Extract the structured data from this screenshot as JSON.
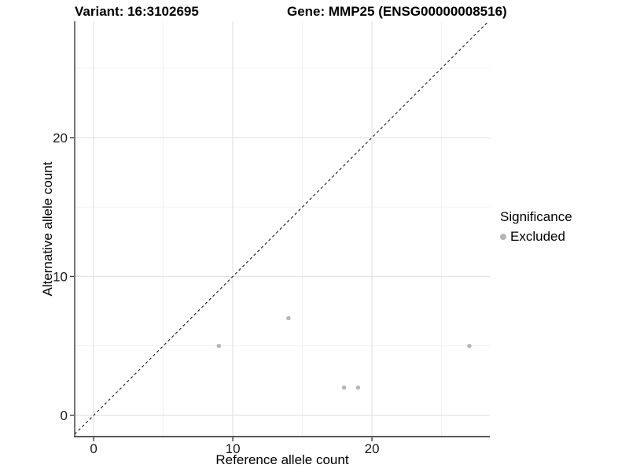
{
  "chart_data": {
    "type": "scatter",
    "titles": {
      "left": "Variant: 16:3102695",
      "right": "Gene: MMP25 (ENSG00000008516)"
    },
    "xlabel": "Reference allele count",
    "ylabel": "Alternative allele count",
    "xlim": [
      -1.36,
      28.47
    ],
    "ylim": [
      -1.53,
      28.38
    ],
    "x_major_ticks": [
      0,
      10,
      20
    ],
    "y_major_ticks": [
      0,
      10,
      20
    ],
    "x_minor_gridlines": [
      5,
      15,
      25
    ],
    "y_minor_gridlines": [
      5,
      15,
      25
    ],
    "grid": "major+minor, light gray on white panel",
    "identity_line": {
      "slope": 1,
      "intercept": 0,
      "style": "dashed",
      "color": "#1a1a1a"
    },
    "series": [
      {
        "name": "Excluded",
        "color": "#b5b5b5",
        "marker": "circle",
        "points": [
          {
            "x": 9,
            "y": 5
          },
          {
            "x": 14,
            "y": 7
          },
          {
            "x": 18,
            "y": 2
          },
          {
            "x": 19,
            "y": 2
          },
          {
            "x": 27,
            "y": 5
          }
        ]
      }
    ],
    "legend": {
      "title": "Significance",
      "position": "right",
      "items": [
        {
          "label": "Excluded",
          "color": "#b5b5b5",
          "marker": "circle"
        }
      ]
    },
    "style_colors": {
      "grid_major": "#e3e3e3",
      "grid_minor": "#efefef",
      "axis_line_left": "#2b2b2b",
      "axis_line_bottom": "#595959",
      "tick_mark": "#333333",
      "tick_label": "#1a1a1a"
    }
  }
}
